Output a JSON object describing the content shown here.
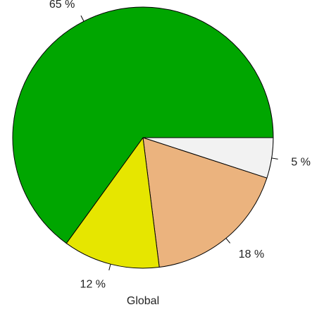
{
  "chart_data": {
    "type": "pie",
    "title": "",
    "xlabel": "Global",
    "slices": [
      {
        "value": 5,
        "label": "5 %",
        "color": "#f2f2f2"
      },
      {
        "value": 18,
        "label": "18 %",
        "color": "#ebb37e"
      },
      {
        "value": 12,
        "label": "12 %",
        "color": "#e6e600"
      },
      {
        "value": 65,
        "label": "65 %",
        "color": "#00a600"
      }
    ],
    "start_angle_deg": 0,
    "direction": "clockwise",
    "border_color": "#000000"
  }
}
